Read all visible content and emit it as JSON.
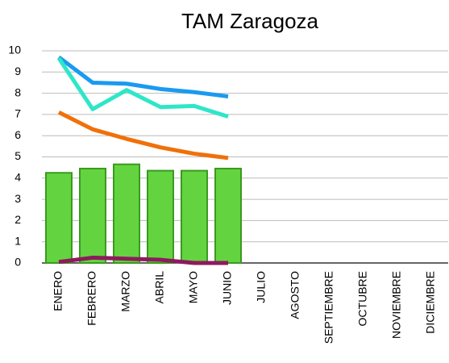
{
  "chart_data": {
    "type": "combo",
    "title": "TAM Zaragoza",
    "categories": [
      "ENERO",
      "FEBRERO",
      "MARZO",
      "ABRIL",
      "MAYO",
      "JUNIO",
      "JULIO",
      "AGOSTO",
      "SEPTIEMBRE",
      "OCTUBRE",
      "NOVIEMBRE",
      "DICIEMBRE"
    ],
    "series": [
      {
        "type": "bar",
        "color": "#63d440",
        "values": [
          4.25,
          4.45,
          4.65,
          4.35,
          4.35,
          4.45,
          null,
          null,
          null,
          null,
          null,
          null
        ]
      },
      {
        "type": "line",
        "color": "#1a9af0",
        "values": [
          9.7,
          8.5,
          8.45,
          8.2,
          8.05,
          7.85,
          null,
          null,
          null,
          null,
          null,
          null
        ]
      },
      {
        "type": "line",
        "color": "#2ee6c8",
        "values": [
          9.65,
          7.25,
          8.15,
          7.35,
          7.4,
          6.9,
          null,
          null,
          null,
          null,
          null,
          null
        ]
      },
      {
        "type": "line",
        "color": "#f0700a",
        "values": [
          7.1,
          6.3,
          5.85,
          5.45,
          5.15,
          4.95,
          null,
          null,
          null,
          null,
          null,
          null
        ]
      },
      {
        "type": "line",
        "color": "#8e1a5e",
        "values": [
          0.05,
          0.25,
          0.2,
          0.15,
          0.0,
          0.0,
          null,
          null,
          null,
          null,
          null,
          null
        ]
      }
    ],
    "ylim": [
      0,
      10
    ],
    "yticks": [
      0,
      1,
      2,
      3,
      4,
      5,
      6,
      7,
      8,
      9,
      10
    ],
    "grid": true
  }
}
